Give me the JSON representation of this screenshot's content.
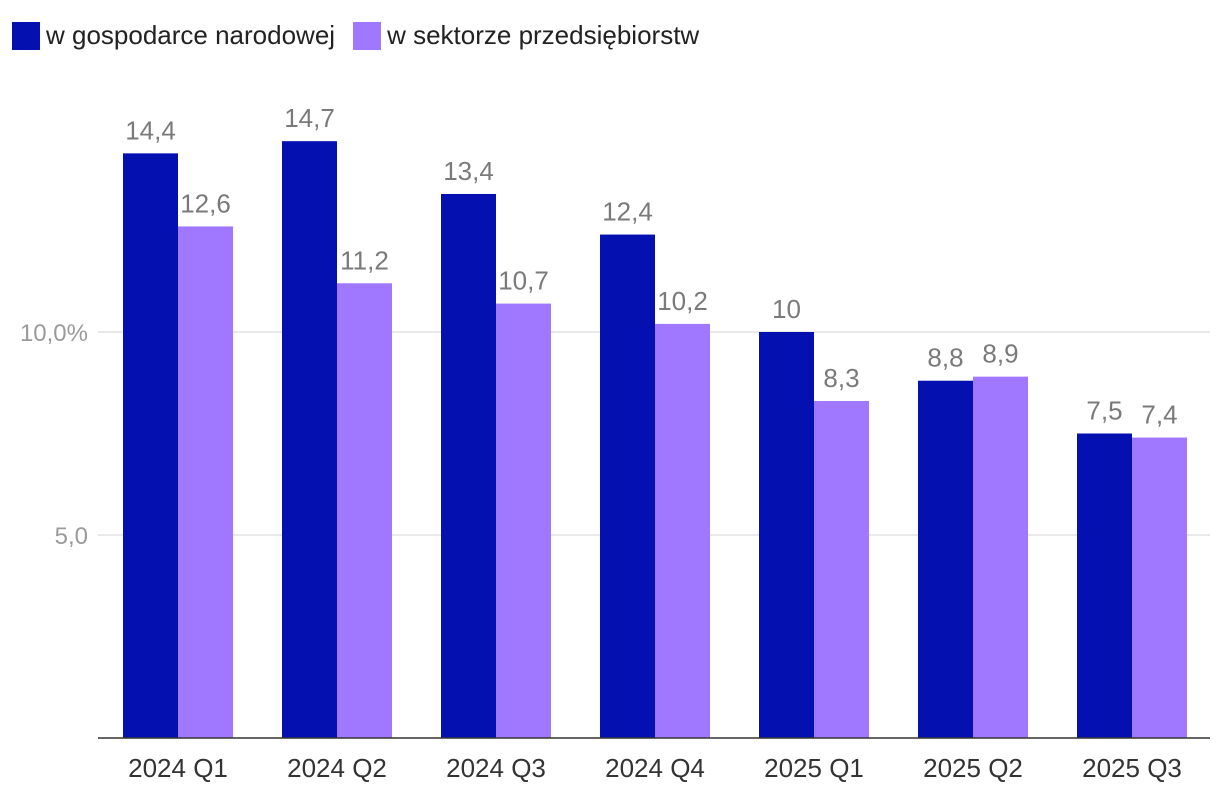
{
  "legend": {
    "items": [
      {
        "label": "w gospodarce narodowej",
        "color": "#0510b0"
      },
      {
        "label": "w sektorze przedsiębiorstw",
        "color": "#a078ff"
      }
    ]
  },
  "chart_data": {
    "type": "bar",
    "categories": [
      "2024 Q1",
      "2024 Q2",
      "2024 Q3",
      "2024 Q4",
      "2025 Q1",
      "2025 Q2",
      "2025 Q3"
    ],
    "series": [
      {
        "name": "w gospodarce narodowej",
        "values": [
          14.4,
          14.7,
          13.4,
          12.4,
          10,
          8.8,
          7.5
        ],
        "labels": [
          "14,4",
          "14,7",
          "13,4",
          "12,4",
          "10",
          "8,8",
          "7,5"
        ],
        "color": "#0510b0"
      },
      {
        "name": "w sektorze przedsiębiorstw",
        "values": [
          12.6,
          11.2,
          10.7,
          10.2,
          8.3,
          8.9,
          7.4
        ],
        "labels": [
          "12,6",
          "11,2",
          "10,7",
          "10,2",
          "8,3",
          "8,9",
          "7,4"
        ],
        "color": "#a078ff"
      }
    ],
    "yticks": [
      {
        "value": 5,
        "label": "5,0"
      },
      {
        "value": 10,
        "label": "10,0%"
      }
    ],
    "ylim": [
      0,
      15.5
    ],
    "grid": true,
    "legend_position": "top-left",
    "title": "",
    "xlabel": "",
    "ylabel": ""
  }
}
